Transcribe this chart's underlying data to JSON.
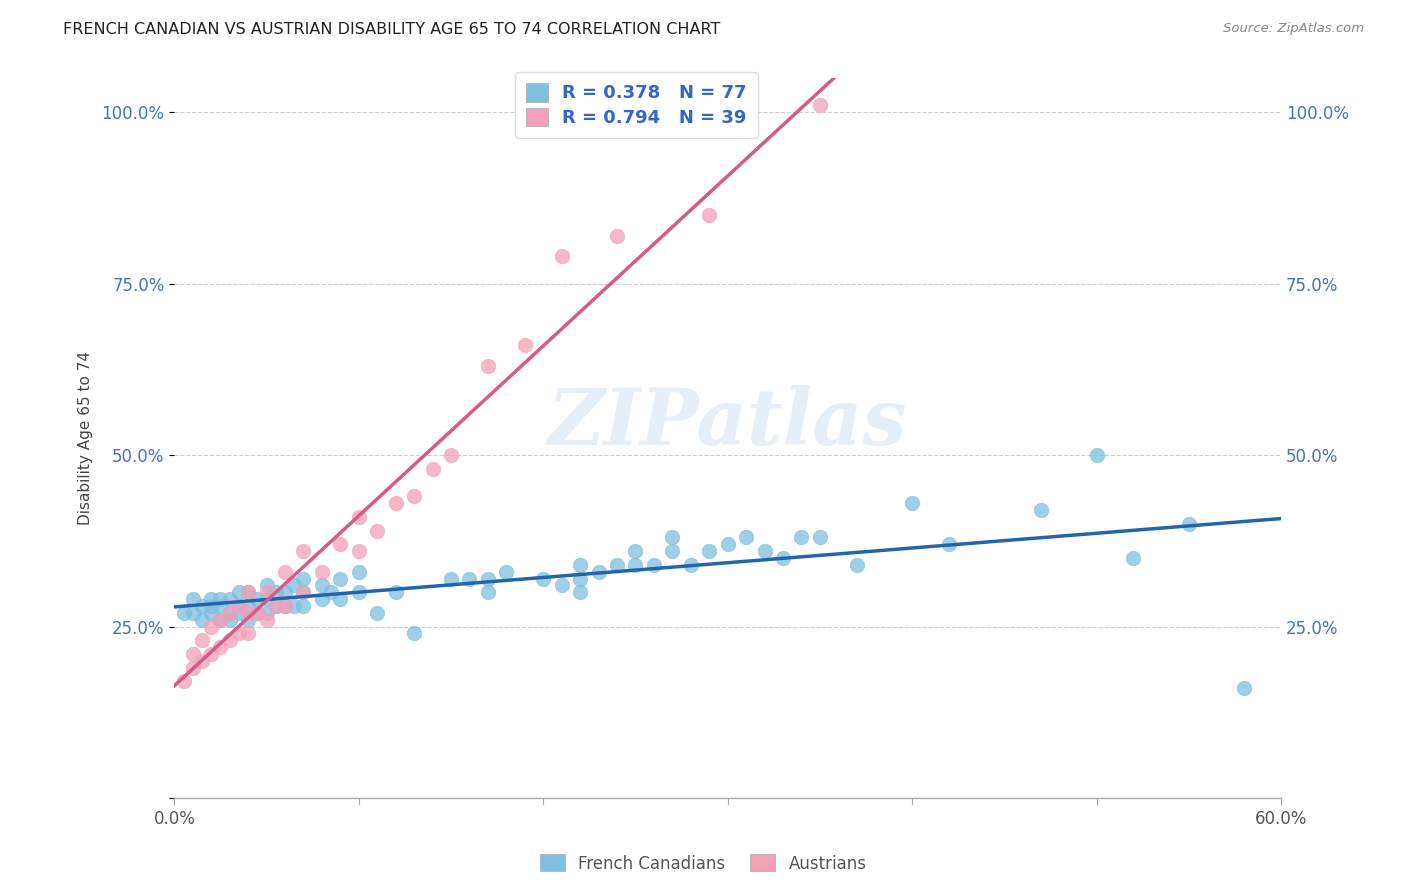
{
  "title": "FRENCH CANADIAN VS AUSTRIAN DISABILITY AGE 65 TO 74 CORRELATION CHART",
  "source": "Source: ZipAtlas.com",
  "ylabel": "Disability Age 65 to 74",
  "x_ticks": [
    0.0,
    0.1,
    0.2,
    0.3,
    0.4,
    0.5,
    0.6
  ],
  "x_tick_labels_show": [
    "0.0%",
    "",
    "",
    "",
    "",
    "",
    "60.0%"
  ],
  "y_ticks": [
    0.0,
    0.25,
    0.5,
    0.75,
    1.0
  ],
  "y_tick_labels": [
    "",
    "25.0%",
    "50.0%",
    "75.0%",
    "100.0%"
  ],
  "xlim": [
    0.0,
    0.6
  ],
  "ylim": [
    0.0,
    1.05
  ],
  "blue_color": "#7fbfdf",
  "pink_color": "#f4a0b8",
  "blue_line_color": "#2166ac",
  "pink_line_color": "#d45b8a",
  "legend_label_blue": "French Canadians",
  "legend_label_pink": "Austrians",
  "watermark": "ZIPatlas",
  "blue_x": [
    0.005,
    0.01,
    0.01,
    0.015,
    0.015,
    0.02,
    0.02,
    0.02,
    0.025,
    0.025,
    0.025,
    0.03,
    0.03,
    0.03,
    0.035,
    0.035,
    0.035,
    0.04,
    0.04,
    0.04,
    0.045,
    0.045,
    0.05,
    0.05,
    0.05,
    0.055,
    0.055,
    0.06,
    0.06,
    0.065,
    0.065,
    0.07,
    0.07,
    0.07,
    0.08,
    0.08,
    0.085,
    0.09,
    0.09,
    0.1,
    0.1,
    0.11,
    0.12,
    0.13,
    0.15,
    0.16,
    0.17,
    0.17,
    0.18,
    0.2,
    0.21,
    0.22,
    0.22,
    0.22,
    0.23,
    0.24,
    0.25,
    0.25,
    0.26,
    0.27,
    0.27,
    0.28,
    0.29,
    0.3,
    0.31,
    0.32,
    0.33,
    0.34,
    0.35,
    0.37,
    0.4,
    0.42,
    0.47,
    0.5,
    0.52,
    0.55,
    0.58
  ],
  "blue_y": [
    0.27,
    0.27,
    0.29,
    0.26,
    0.28,
    0.27,
    0.28,
    0.29,
    0.26,
    0.28,
    0.29,
    0.26,
    0.27,
    0.29,
    0.27,
    0.28,
    0.3,
    0.26,
    0.28,
    0.3,
    0.27,
    0.29,
    0.27,
    0.29,
    0.31,
    0.28,
    0.3,
    0.28,
    0.3,
    0.28,
    0.31,
    0.28,
    0.3,
    0.32,
    0.29,
    0.31,
    0.3,
    0.29,
    0.32,
    0.3,
    0.33,
    0.27,
    0.3,
    0.24,
    0.32,
    0.32,
    0.3,
    0.32,
    0.33,
    0.32,
    0.31,
    0.3,
    0.32,
    0.34,
    0.33,
    0.34,
    0.34,
    0.36,
    0.34,
    0.36,
    0.38,
    0.34,
    0.36,
    0.37,
    0.38,
    0.36,
    0.35,
    0.38,
    0.38,
    0.34,
    0.43,
    0.37,
    0.42,
    0.5,
    0.35,
    0.4,
    0.16
  ],
  "pink_x": [
    0.005,
    0.01,
    0.01,
    0.015,
    0.015,
    0.02,
    0.02,
    0.025,
    0.025,
    0.03,
    0.03,
    0.035,
    0.035,
    0.04,
    0.04,
    0.04,
    0.045,
    0.05,
    0.05,
    0.055,
    0.06,
    0.06,
    0.07,
    0.07,
    0.08,
    0.09,
    0.1,
    0.1,
    0.11,
    0.12,
    0.13,
    0.14,
    0.15,
    0.17,
    0.19,
    0.21,
    0.24,
    0.29,
    0.35
  ],
  "pink_y": [
    0.17,
    0.19,
    0.21,
    0.2,
    0.23,
    0.21,
    0.25,
    0.22,
    0.26,
    0.23,
    0.27,
    0.24,
    0.28,
    0.24,
    0.27,
    0.3,
    0.27,
    0.26,
    0.3,
    0.28,
    0.28,
    0.33,
    0.3,
    0.36,
    0.33,
    0.37,
    0.36,
    0.41,
    0.39,
    0.43,
    0.44,
    0.48,
    0.5,
    0.63,
    0.66,
    0.79,
    0.82,
    0.85,
    1.01
  ]
}
